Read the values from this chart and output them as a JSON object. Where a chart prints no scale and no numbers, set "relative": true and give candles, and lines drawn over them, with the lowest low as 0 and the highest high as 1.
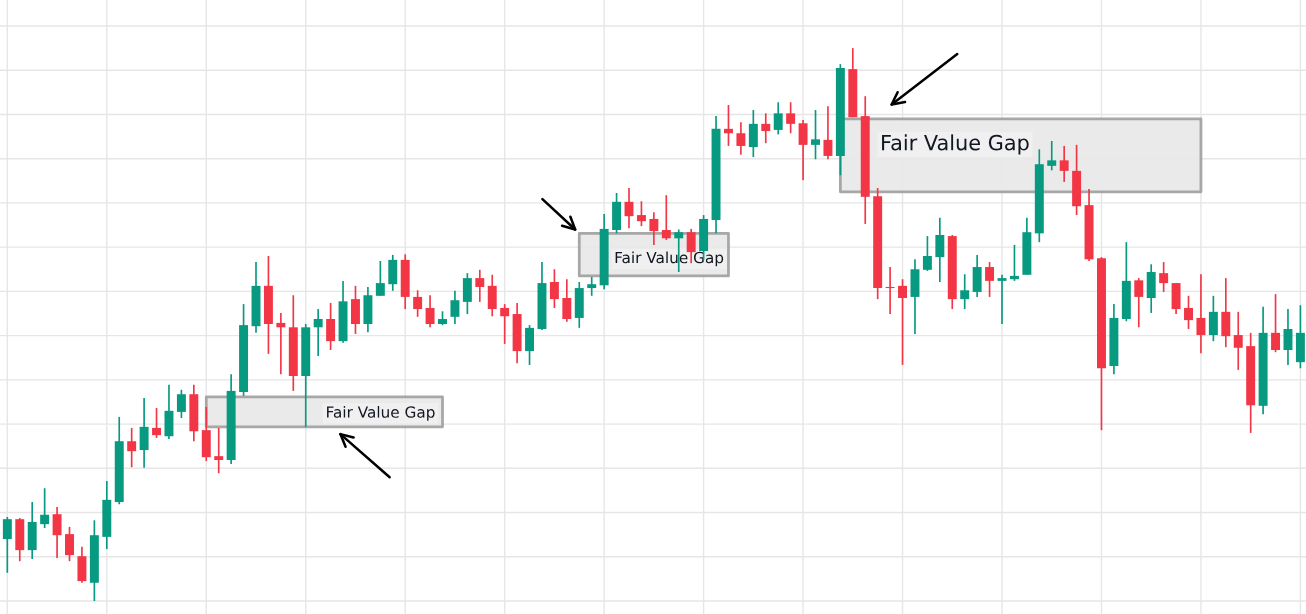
{
  "chart_data": {
    "type": "candlestick",
    "relative": true,
    "grid": true,
    "categories": [
      null,
      null,
      null,
      null,
      null,
      null,
      null,
      null,
      null,
      null,
      null,
      null,
      null,
      null,
      null,
      null,
      null,
      null,
      null,
      null,
      null,
      null,
      null,
      null,
      null,
      null,
      null,
      null,
      null,
      null,
      null,
      null,
      null,
      null,
      null,
      null,
      null,
      null,
      null,
      null,
      null,
      null,
      null,
      null,
      null,
      null,
      null,
      null,
      null,
      null,
      null,
      null,
      null,
      null,
      null,
      null,
      null,
      null,
      null,
      null,
      null,
      null,
      null,
      null,
      null,
      null,
      null,
      null,
      null,
      null,
      null,
      null,
      null,
      null,
      null,
      null,
      null,
      null,
      null,
      null,
      null,
      null,
      null,
      null,
      null,
      null,
      null,
      null,
      null,
      null,
      null,
      null,
      null,
      null,
      null,
      null,
      null,
      null,
      null,
      null,
      null,
      null,
      null,
      null,
      null
    ],
    "colors": [
      "#089981",
      "#f23645",
      "#089981",
      "#089981",
      "#f23645",
      "#f23645",
      "#f23645",
      "#089981",
      "#089981",
      "#089981",
      "#f23645",
      "#089981",
      "#f23645",
      "#089981",
      "#089981",
      "#f23645",
      "#f23645",
      "#f23645",
      "#089981",
      "#089981",
      "#089981",
      "#f23645",
      "#f23645",
      "#f23645",
      "#089981",
      "#089981",
      "#f23645",
      "#089981",
      "#f23645",
      "#089981",
      "#089981",
      "#089981",
      "#f23645",
      "#f23645",
      "#f23645",
      "#089981",
      "#089981",
      "#089981",
      "#f23645",
      "#f23645",
      "#f23645",
      "#f23645",
      "#089981",
      "#089981",
      "#f23645",
      "#f23645",
      "#089981",
      "#089981",
      "#089981",
      "#089981",
      "#f23645",
      "#f23645",
      "#f23645",
      "#f23645",
      "#089981",
      "#f23645",
      "#089981",
      "#089981",
      "#f23645",
      "#f23645",
      "#089981",
      "#f23645",
      "#089981",
      "#f23645",
      "#f23645",
      "#089981",
      "#f23645",
      "#089981",
      "#f23645",
      "#f23645",
      "#f23645",
      "#f23645",
      "#f23645",
      "#089981",
      "#089981",
      "#089981",
      "#f23645",
      "#089981",
      "#089981",
      "#f23645",
      "#089981",
      "#089981",
      "#089981",
      "#089981",
      "#089981",
      "#f23645",
      "#f23645",
      "#f23645",
      "#f23645",
      "#089981",
      "#089981",
      "#f23645",
      "#089981",
      "#f23645",
      "#f23645",
      "#f23645",
      "#f23645",
      "#089981",
      "#f23645",
      "#f23645",
      "#f23645",
      "#089981",
      "#f23645",
      "#089981",
      "#089981"
    ],
    "ohlc": [
      [
        0.112,
        0.152,
        0.051,
        0.148
      ],
      [
        0.148,
        0.15,
        0.072,
        0.092
      ],
      [
        0.092,
        0.179,
        0.076,
        0.143
      ],
      [
        0.139,
        0.204,
        0.132,
        0.156
      ],
      [
        0.157,
        0.17,
        0.078,
        0.119
      ],
      [
        0.121,
        0.134,
        0.072,
        0.083
      ],
      [
        0.081,
        0.098,
        0.033,
        0.036
      ],
      [
        0.033,
        0.146,
        0.0,
        0.119
      ],
      [
        0.116,
        0.217,
        0.094,
        0.183
      ],
      [
        0.179,
        0.333,
        0.175,
        0.289
      ],
      [
        0.289,
        0.313,
        0.242,
        0.271
      ],
      [
        0.273,
        0.367,
        0.241,
        0.315
      ],
      [
        0.313,
        0.349,
        0.295,
        0.3
      ],
      [
        0.298,
        0.391,
        0.293,
        0.344
      ],
      [
        0.342,
        0.382,
        0.331,
        0.374
      ],
      [
        0.374,
        0.391,
        0.289,
        0.307
      ],
      [
        0.309,
        0.351,
        0.253,
        0.26
      ],
      [
        0.262,
        0.313,
        0.231,
        0.255
      ],
      [
        0.255,
        0.41,
        0.248,
        0.38
      ],
      [
        0.378,
        0.537,
        0.371,
        0.499
      ],
      [
        0.497,
        0.613,
        0.485,
        0.57
      ],
      [
        0.57,
        0.624,
        0.447,
        0.501
      ],
      [
        0.503,
        0.521,
        0.41,
        0.495
      ],
      [
        0.495,
        0.553,
        0.38,
        0.407
      ],
      [
        0.407,
        0.501,
        0.315,
        0.495
      ],
      [
        0.495,
        0.528,
        0.443,
        0.51
      ],
      [
        0.51,
        0.539,
        0.454,
        0.47
      ],
      [
        0.47,
        0.579,
        0.467,
        0.542
      ],
      [
        0.546,
        0.57,
        0.483,
        0.501
      ],
      [
        0.501,
        0.568,
        0.486,
        0.553
      ],
      [
        0.552,
        0.615,
        0.552,
        0.575
      ],
      [
        0.573,
        0.626,
        0.561,
        0.617
      ],
      [
        0.617,
        0.627,
        0.528,
        0.55
      ],
      [
        0.55,
        0.562,
        0.514,
        0.528
      ],
      [
        0.53,
        0.553,
        0.495,
        0.501
      ],
      [
        0.501,
        0.524,
        0.499,
        0.51
      ],
      [
        0.514,
        0.561,
        0.501,
        0.544
      ],
      [
        0.541,
        0.593,
        0.519,
        0.584
      ],
      [
        0.584,
        0.599,
        0.541,
        0.568
      ],
      [
        0.57,
        0.59,
        0.515,
        0.528
      ],
      [
        0.53,
        0.537,
        0.465,
        0.515
      ],
      [
        0.519,
        0.539,
        0.43,
        0.452
      ],
      [
        0.452,
        0.499,
        0.427,
        0.494
      ],
      [
        0.492,
        0.613,
        0.49,
        0.575
      ],
      [
        0.577,
        0.6,
        0.53,
        0.546
      ],
      [
        0.548,
        0.582,
        0.505,
        0.51
      ],
      [
        0.512,
        0.577,
        0.494,
        0.566
      ],
      [
        0.566,
        0.586,
        0.552,
        0.573
      ],
      [
        0.571,
        0.7,
        0.564,
        0.673
      ],
      [
        0.671,
        0.738,
        0.665,
        0.722
      ],
      [
        0.722,
        0.747,
        0.674,
        0.696
      ],
      [
        0.698,
        0.723,
        0.678,
        0.687
      ],
      [
        0.691,
        0.703,
        0.644,
        0.669
      ],
      [
        0.671,
        0.734,
        0.653,
        0.656
      ],
      [
        0.656,
        0.672,
        0.595,
        0.667
      ],
      [
        0.667,
        0.673,
        0.611,
        0.631
      ],
      [
        0.633,
        0.698,
        0.617,
        0.691
      ],
      [
        0.689,
        0.877,
        0.665,
        0.854
      ],
      [
        0.854,
        0.897,
        0.823,
        0.846
      ],
      [
        0.846,
        0.866,
        0.807,
        0.823
      ],
      [
        0.821,
        0.888,
        0.803,
        0.863
      ],
      [
        0.863,
        0.882,
        0.828,
        0.85
      ],
      [
        0.852,
        0.902,
        0.844,
        0.882
      ],
      [
        0.882,
        0.902,
        0.846,
        0.863
      ],
      [
        0.864,
        0.87,
        0.761,
        0.825
      ],
      [
        0.825,
        0.888,
        0.799,
        0.835
      ],
      [
        0.834,
        0.895,
        0.799,
        0.805
      ],
      [
        0.805,
        0.971,
        0.77,
        0.964
      ],
      [
        0.962,
        1.0,
        0.875,
        0.875
      ],
      [
        0.877,
        0.913,
        0.682,
        0.731
      ],
      [
        0.732,
        0.747,
        0.546,
        0.566
      ],
      [
        0.568,
        0.604,
        0.519,
        0.566
      ],
      [
        0.57,
        0.582,
        0.427,
        0.548
      ],
      [
        0.55,
        0.618,
        0.483,
        0.6
      ],
      [
        0.599,
        0.66,
        0.597,
        0.624
      ],
      [
        0.622,
        0.693,
        0.577,
        0.662
      ],
      [
        0.66,
        0.662,
        0.528,
        0.546
      ],
      [
        0.546,
        0.591,
        0.528,
        0.562
      ],
      [
        0.559,
        0.626,
        0.55,
        0.604
      ],
      [
        0.604,
        0.613,
        0.55,
        0.579
      ],
      [
        0.579,
        0.59,
        0.501,
        0.584
      ],
      [
        0.582,
        0.644,
        0.579,
        0.588
      ],
      [
        0.59,
        0.693,
        0.59,
        0.667
      ],
      [
        0.665,
        0.817,
        0.649,
        0.79
      ],
      [
        0.787,
        0.832,
        0.779,
        0.797
      ],
      [
        0.797,
        0.823,
        0.758,
        0.778
      ],
      [
        0.778,
        0.825,
        0.698,
        0.714
      ],
      [
        0.716,
        0.745,
        0.615,
        0.618
      ],
      [
        0.62,
        0.622,
        0.309,
        0.421
      ],
      [
        0.425,
        0.537,
        0.41,
        0.512
      ],
      [
        0.51,
        0.649,
        0.506,
        0.579
      ],
      [
        0.58,
        0.584,
        0.495,
        0.55
      ],
      [
        0.548,
        0.609,
        0.521,
        0.595
      ],
      [
        0.593,
        0.613,
        0.559,
        0.575
      ],
      [
        0.575,
        0.575,
        0.519,
        0.528
      ],
      [
        0.53,
        0.552,
        0.492,
        0.508
      ],
      [
        0.512,
        0.591,
        0.448,
        0.481
      ],
      [
        0.481,
        0.552,
        0.47,
        0.523
      ],
      [
        0.523,
        0.584,
        0.459,
        0.479
      ],
      [
        0.481,
        0.523,
        0.418,
        0.458
      ],
      [
        0.461,
        0.485,
        0.304,
        0.354
      ],
      [
        0.353,
        0.532,
        0.338,
        0.485
      ],
      [
        0.485,
        0.555,
        0.45,
        0.454
      ],
      [
        0.454,
        0.528,
        0.427,
        0.492
      ],
      [
        0.432,
        0.535,
        0.421,
        0.485
      ]
    ],
    "bands": [
      {
        "axis": "y",
        "from": 0.315,
        "to": 0.369,
        "label": "Fair Value Gap",
        "color": "#e8e8e8"
      },
      {
        "axis": "y",
        "from": 0.588,
        "to": 0.665,
        "label": "Fair Value Gap",
        "color": "#e8e8e8"
      },
      {
        "axis": "y",
        "from": 0.74,
        "to": 0.872,
        "label": "Fair Value Gap",
        "color": "#e8e8e8"
      }
    ]
  }
}
